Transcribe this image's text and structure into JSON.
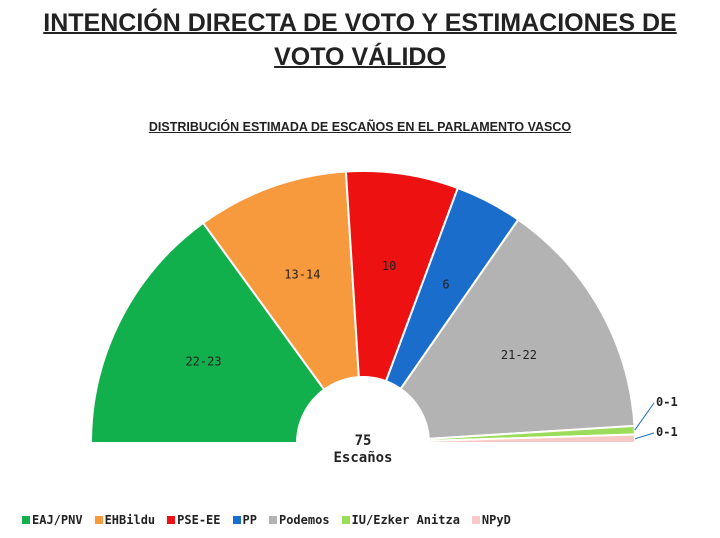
{
  "title": "INTENCIÓN DIRECTA DE VOTO Y  ESTIMACIONES DE VOTO VÁLIDO",
  "title_line1": "INTENCIÓN DIRECTA DE VOTO Y  ESTIMACIONES DE",
  "title_line2": "VOTO VÁLIDO",
  "subtitle": "DISTRIBUCIÓN ESTIMADA DE ESCAÑOS EN EL PARLAMENTO VASCO",
  "center_value": "75",
  "center_label": "Escaños",
  "chart_data": {
    "type": "pie",
    "subtype": "semicircle-parliament",
    "title": "DISTRIBUCIÓN ESTIMADA DE ESCAÑOS EN EL PARLAMENTO VASCO",
    "total_seats": 75,
    "legend_position": "bottom",
    "slices": [
      {
        "name": "EAJ/PNV",
        "label": "22-23",
        "value": 22.5,
        "color": "#12b04c"
      },
      {
        "name": "EHBildu",
        "label": "13-14",
        "value": 13.5,
        "color": "#f79a3e"
      },
      {
        "name": "PSE-EE",
        "label": "10",
        "value": 10,
        "color": "#ee1111"
      },
      {
        "name": "PP",
        "label": "6",
        "value": 6,
        "color": "#1b6dcc"
      },
      {
        "name": "Podemos",
        "label": "21-22",
        "value": 21.5,
        "color": "#b3b3b3"
      },
      {
        "name": "IU/Ezker Anitza",
        "label": "0-1",
        "value": 0.75,
        "color": "#9bdc5a"
      },
      {
        "name": "NPyD",
        "label": "0-1",
        "value": 0.75,
        "color": "#f7c9c4"
      }
    ]
  }
}
